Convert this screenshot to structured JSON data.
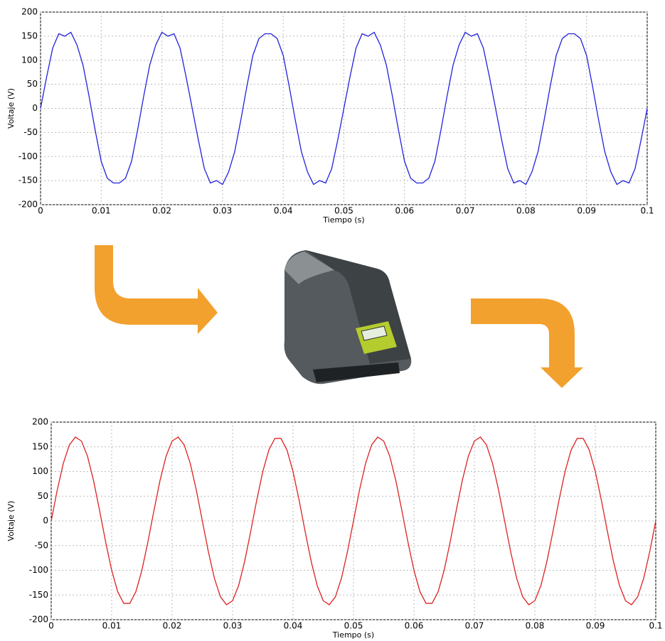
{
  "chart_data": [
    {
      "type": "line",
      "xlabel": "Tiempo (s)",
      "ylabel": "Voltaje (V)",
      "grid": true,
      "xlim": [
        0,
        0.1
      ],
      "ylim": [
        -200,
        200
      ],
      "xticks": [
        0,
        0.01,
        0.02,
        0.03,
        0.04,
        0.05,
        0.06,
        0.07,
        0.08,
        0.09,
        0.1
      ],
      "yticks": [
        -200,
        -150,
        -100,
        -50,
        0,
        50,
        100,
        150,
        200
      ],
      "x": [
        0,
        0.001,
        0.002,
        0.003,
        0.004,
        0.005,
        0.006,
        0.007,
        0.008,
        0.009,
        0.01,
        0.011,
        0.012,
        0.013,
        0.014,
        0.015,
        0.016,
        0.017,
        0.018,
        0.019,
        0.02,
        0.021,
        0.022,
        0.023,
        0.024,
        0.025,
        0.026,
        0.027,
        0.028,
        0.029,
        0.03,
        0.031,
        0.032,
        0.033,
        0.034,
        0.035,
        0.036,
        0.037,
        0.038,
        0.039,
        0.04,
        0.041,
        0.042,
        0.043,
        0.044,
        0.045,
        0.046,
        0.047,
        0.048,
        0.049,
        0.05,
        0.051,
        0.052,
        0.053,
        0.054,
        0.055,
        0.056,
        0.057,
        0.058,
        0.059,
        0.06,
        0.061,
        0.062,
        0.063,
        0.064,
        0.065,
        0.066,
        0.067,
        0.068,
        0.069,
        0.07,
        0.071,
        0.072,
        0.073,
        0.074,
        0.075,
        0.076,
        0.077,
        0.078,
        0.079,
        0.08,
        0.081,
        0.082,
        0.083,
        0.084,
        0.085,
        0.086,
        0.087,
        0.088,
        0.089,
        0.09,
        0.091,
        0.092,
        0.093,
        0.094,
        0.095,
        0.096,
        0.097,
        0.098,
        0.099,
        0.1
      ],
      "series": [
        {
          "color": "#2222dd",
          "values": [
            0,
            65,
            125,
            155,
            150,
            158,
            132,
            90,
            25,
            -45,
            -110,
            -145,
            -155,
            -155,
            -145,
            -110,
            -45,
            25,
            90,
            132,
            158,
            150,
            155,
            125,
            65,
            0,
            -65,
            -125,
            -155,
            -150,
            -158,
            -132,
            -90,
            -25,
            45,
            110,
            145,
            155,
            155,
            145,
            110,
            45,
            -25,
            -90,
            -132,
            -158,
            -150,
            -155,
            -125,
            -65,
            0,
            65,
            125,
            155,
            150,
            158,
            132,
            90,
            25,
            -45,
            -110,
            -145,
            -155,
            -155,
            -145,
            -110,
            -45,
            25,
            90,
            132,
            158,
            150,
            155,
            125,
            65,
            0,
            -65,
            -125,
            -155,
            -150,
            -158,
            -132,
            -90,
            -25,
            45,
            110,
            145,
            155,
            155,
            145,
            110,
            45,
            -25,
            -90,
            -132,
            -158,
            -150,
            -155,
            -125,
            -65,
            0
          ]
        }
      ]
    },
    {
      "type": "line",
      "xlabel": "Tiempo (s)",
      "ylabel": "Voltaje (V)",
      "grid": true,
      "xlim": [
        0,
        0.1
      ],
      "ylim": [
        -200,
        200
      ],
      "xticks": [
        0,
        0.01,
        0.02,
        0.03,
        0.04,
        0.05,
        0.06,
        0.07,
        0.08,
        0.09,
        0.1
      ],
      "yticks": [
        -200,
        -150,
        -100,
        -50,
        0,
        50,
        100,
        150,
        200
      ],
      "x": [
        0,
        0.001,
        0.002,
        0.003,
        0.004,
        0.005,
        0.006,
        0.007,
        0.008,
        0.009,
        0.01,
        0.011,
        0.012,
        0.013,
        0.014,
        0.015,
        0.016,
        0.017,
        0.018,
        0.019,
        0.02,
        0.021,
        0.022,
        0.023,
        0.024,
        0.025,
        0.026,
        0.027,
        0.028,
        0.029,
        0.03,
        0.031,
        0.032,
        0.033,
        0.034,
        0.035,
        0.036,
        0.037,
        0.038,
        0.039,
        0.04,
        0.041,
        0.042,
        0.043,
        0.044,
        0.045,
        0.046,
        0.047,
        0.048,
        0.049,
        0.05,
        0.051,
        0.052,
        0.053,
        0.054,
        0.055,
        0.056,
        0.057,
        0.058,
        0.059,
        0.06,
        0.061,
        0.062,
        0.063,
        0.064,
        0.065,
        0.066,
        0.067,
        0.068,
        0.069,
        0.07,
        0.071,
        0.072,
        0.073,
        0.074,
        0.075,
        0.076,
        0.077,
        0.078,
        0.079,
        0.08,
        0.081,
        0.082,
        0.083,
        0.084,
        0.085,
        0.086,
        0.087,
        0.088,
        0.089,
        0.09,
        0.091,
        0.092,
        0.093,
        0.094,
        0.095,
        0.096,
        0.097,
        0.098,
        0.099,
        0.1
      ],
      "series": [
        {
          "color": "#dd2222",
          "values": [
            0,
            62.6,
            116.4,
            153.8,
            169.7,
            161.7,
            131.0,
            81.9,
            21.3,
            -42.3,
            -99.9,
            -143.5,
            -167.0,
            -167.0,
            -143.5,
            -99.9,
            -42.3,
            21.3,
            81.9,
            131.0,
            161.7,
            169.7,
            153.8,
            116.4,
            62.6,
            0,
            -62.6,
            -116.4,
            -153.8,
            -169.7,
            -161.7,
            -131.0,
            -81.9,
            -21.3,
            42.3,
            99.9,
            143.5,
            167.0,
            167.0,
            143.5,
            99.9,
            42.3,
            -21.3,
            -81.9,
            -131.0,
            -161.7,
            -169.7,
            -153.8,
            -116.4,
            -62.6,
            0,
            62.6,
            116.4,
            153.8,
            169.7,
            161.7,
            131.0,
            81.9,
            21.3,
            -42.3,
            -99.9,
            -143.5,
            -167.0,
            -167.0,
            -143.5,
            -99.9,
            -42.3,
            21.3,
            81.9,
            131.0,
            161.7,
            169.7,
            153.8,
            116.4,
            62.6,
            0,
            -62.6,
            -116.4,
            -153.8,
            -169.7,
            -161.7,
            -131.0,
            -81.9,
            -21.3,
            42.3,
            99.9,
            143.5,
            167.0,
            167.0,
            143.5,
            99.9,
            42.3,
            -21.3,
            -81.9,
            -131.0,
            -161.7,
            -169.7,
            -153.8,
            -116.4,
            -62.6,
            0
          ]
        }
      ]
    }
  ]
}
